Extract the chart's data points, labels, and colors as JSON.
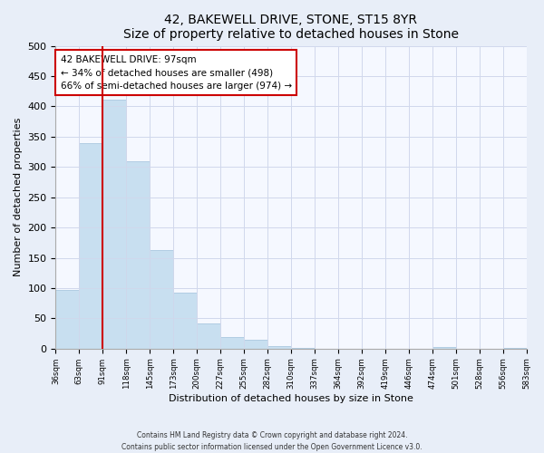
{
  "title": "42, BAKEWELL DRIVE, STONE, ST15 8YR",
  "subtitle": "Size of property relative to detached houses in Stone",
  "xlabel": "Distribution of detached houses by size in Stone",
  "ylabel": "Number of detached properties",
  "bar_color": "#c8dff0",
  "bar_edge_color": "#aac8e0",
  "bin_labels": [
    "36sqm",
    "63sqm",
    "91sqm",
    "118sqm",
    "145sqm",
    "173sqm",
    "200sqm",
    "227sqm",
    "255sqm",
    "282sqm",
    "310sqm",
    "337sqm",
    "364sqm",
    "392sqm",
    "419sqm",
    "446sqm",
    "474sqm",
    "501sqm",
    "528sqm",
    "556sqm",
    "583sqm"
  ],
  "bar_heights": [
    97,
    340,
    411,
    310,
    163,
    93,
    42,
    19,
    14,
    4,
    1,
    0,
    0,
    0,
    0,
    0,
    3,
    0,
    0,
    1
  ],
  "ylim": [
    0,
    500
  ],
  "yticks": [
    0,
    50,
    100,
    150,
    200,
    250,
    300,
    350,
    400,
    450,
    500
  ],
  "vline_index": 2,
  "vline_color": "#cc0000",
  "annotation_title": "42 BAKEWELL DRIVE: 97sqm",
  "annotation_line1": "← 34% of detached houses are smaller (498)",
  "annotation_line2": "66% of semi-detached houses are larger (974) →",
  "annotation_box_color": "#ffffff",
  "annotation_box_edge": "#cc0000",
  "footer_line1": "Contains HM Land Registry data © Crown copyright and database right 2024.",
  "footer_line2": "Contains public sector information licensed under the Open Government Licence v3.0.",
  "background_color": "#e8eef8",
  "plot_bg_color": "#f5f8ff",
  "grid_color": "#d0d8ec"
}
